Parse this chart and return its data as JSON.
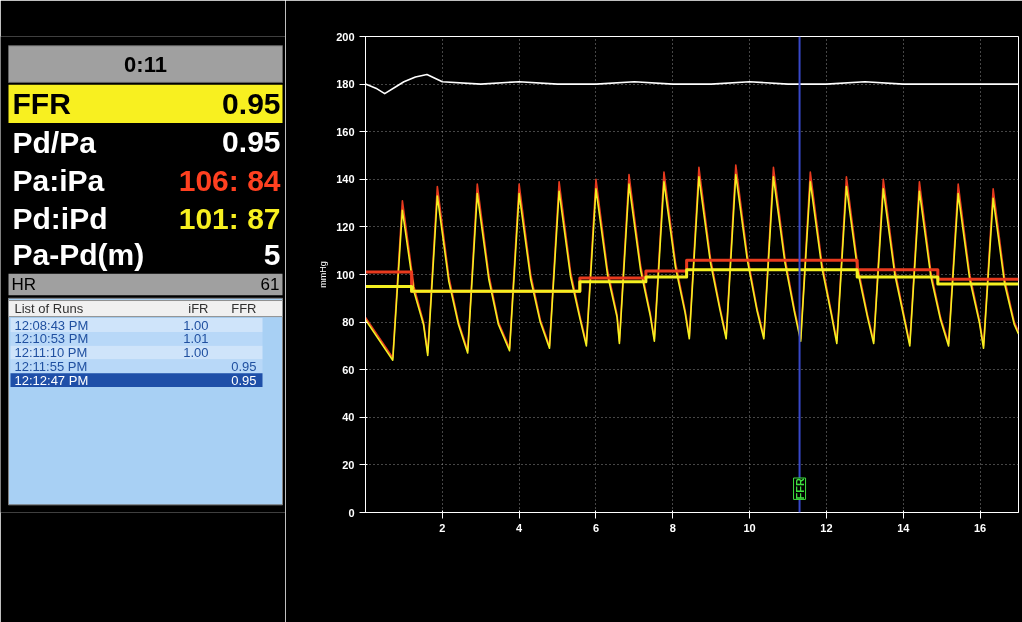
{
  "chart_data": [
    {
      "type": "other",
      "title": "0:11",
      "annotations": [
        "FFR",
        "0.95",
        "Pd/Pa",
        "0.95",
        "Pa:iPa",
        "106: 84",
        "Pd:iPd",
        "101: 87",
        "Pa-Pd(m)",
        "5",
        "HR",
        "61",
        "List of Runs",
        "iFR",
        "FFR",
        "12:08:43 PM",
        "1.00",
        "12:10:53 PM",
        "1.01",
        "12:11:10 PM",
        "1.00",
        "12:11:55 PM",
        "0.95",
        "12:12:47 PM",
        "0.95"
      ]
    },
    {
      "type": "line",
      "ylabel": "mmHg",
      "xlim": [
        0,
        17
      ],
      "ylim": [
        0,
        200
      ],
      "xticks": [
        2,
        4,
        6,
        8,
        10,
        12,
        14,
        16
      ],
      "yticks": [
        0,
        20,
        40,
        60,
        80,
        100,
        120,
        140,
        160,
        180,
        200
      ],
      "grid": true,
      "ref_lines": [
        {
          "axis": "x",
          "value": 11.3,
          "label": "FFR",
          "color": "#3848c8"
        }
      ],
      "series": [
        {
          "type": "line",
          "color": "#ffffff",
          "x": [
            0,
            0.3,
            0.5,
            0.8,
            1.0,
            1.3,
            1.6,
            2,
            3,
            4,
            5,
            6,
            7,
            8,
            9,
            10,
            11,
            12,
            13,
            14,
            15,
            16,
            17
          ],
          "values": [
            180,
            178,
            176,
            179,
            181,
            183,
            184,
            181,
            180,
            181,
            180,
            180,
            181,
            180,
            180,
            181,
            180,
            180,
            181,
            180,
            180,
            180,
            180
          ]
        },
        {
          "type": "line",
          "color": "#e83a1e",
          "x": [
            0,
            0.71,
            0.96,
            1.26,
            1.51,
            1.62,
            1.87,
            2.17,
            2.42,
            2.66,
            2.91,
            3.21,
            3.46,
            3.75,
            4.0,
            4.3,
            4.55,
            4.79,
            5.04,
            5.34,
            5.59,
            5.75,
            6.0,
            6.3,
            6.55,
            6.61,
            6.86,
            7.16,
            7.41,
            7.52,
            7.77,
            8.07,
            8.32,
            8.43,
            8.68,
            8.98,
            9.23,
            9.39,
            9.64,
            9.94,
            10.19,
            10.37,
            10.62,
            10.92,
            11.17,
            11.33,
            11.58,
            11.88,
            12.13,
            12.27,
            12.52,
            12.82,
            13.07,
            13.23,
            13.48,
            13.78,
            14.03,
            14.17,
            14.42,
            14.72,
            14.97,
            15.18,
            15.43,
            15.73,
            15.98,
            16.09,
            16.34,
            16.64,
            16.89,
            17
          ],
          "values": [
            82,
            65,
            131,
            95,
            80,
            67,
            137,
            99,
            80,
            68,
            138,
            100,
            80,
            69,
            138,
            100,
            81,
            70,
            139,
            101,
            82,
            71,
            140,
            102,
            83,
            72,
            142,
            104,
            84,
            73,
            143,
            105,
            85,
            74,
            145,
            107,
            86,
            74,
            146,
            108,
            86,
            74,
            145,
            107,
            85,
            73,
            143,
            105,
            84,
            72,
            141,
            103,
            83,
            72,
            140,
            102,
            82,
            71,
            139,
            101,
            82,
            71,
            138,
            100,
            81,
            70,
            136,
            98,
            80,
            76
          ]
        },
        {
          "type": "line",
          "color": "#f4f020",
          "x": [
            0,
            0.71,
            0.96,
            1.26,
            1.51,
            1.62,
            1.87,
            2.17,
            2.42,
            2.66,
            2.91,
            3.21,
            3.46,
            3.75,
            4.0,
            4.3,
            4.55,
            4.79,
            5.04,
            5.34,
            5.59,
            5.75,
            6.0,
            6.3,
            6.55,
            6.61,
            6.86,
            7.16,
            7.41,
            7.52,
            7.77,
            8.07,
            8.32,
            8.43,
            8.68,
            8.98,
            9.23,
            9.39,
            9.64,
            9.94,
            10.19,
            10.37,
            10.62,
            10.92,
            11.17,
            11.33,
            11.58,
            11.88,
            12.13,
            12.27,
            12.52,
            12.82,
            13.07,
            13.23,
            13.48,
            13.78,
            14.03,
            14.17,
            14.42,
            14.72,
            14.97,
            15.18,
            15.43,
            15.73,
            15.98,
            16.09,
            16.34,
            16.64,
            16.89,
            17
          ],
          "values": [
            81,
            64,
            127,
            93,
            79,
            66,
            133,
            97,
            79,
            67,
            134,
            98,
            79,
            68,
            134,
            98,
            80,
            69,
            135,
            99,
            81,
            70,
            136,
            100,
            82,
            71,
            138,
            102,
            83,
            72,
            139,
            103,
            84,
            73,
            141,
            105,
            85,
            73,
            142,
            106,
            85,
            73,
            141,
            105,
            84,
            72,
            139,
            103,
            83,
            71,
            137,
            101,
            82,
            71,
            136,
            100,
            81,
            70,
            135,
            99,
            81,
            70,
            134,
            98,
            80,
            69,
            132,
            96,
            79,
            75
          ]
        },
        {
          "type": "step",
          "color": "#e83a1e",
          "x": [
            0,
            1.2,
            5.58,
            7.3,
            8.36,
            12.8,
            14.9,
            17
          ],
          "values": [
            101,
            93,
            98.5,
            101.5,
            106,
            102,
            98,
            98
          ]
        },
        {
          "type": "step",
          "color": "#f4f020",
          "x": [
            0,
            1.2,
            5.58,
            7.3,
            8.36,
            12.8,
            14.9,
            17
          ],
          "values": [
            95,
            93,
            97,
            99,
            102,
            99,
            96,
            96
          ]
        }
      ]
    }
  ]
}
